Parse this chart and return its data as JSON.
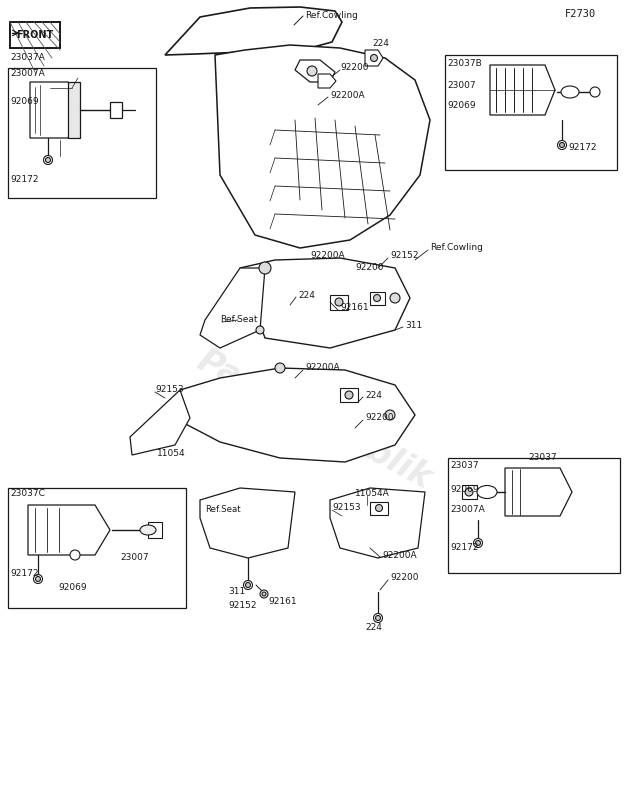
{
  "bg_color": "#ffffff",
  "line_color": "#1a1a1a",
  "text_color": "#1a1a1a",
  "gray_color": "#888888",
  "title": "F2730",
  "watermark": "PartsRepublik",
  "watermark_color": "#cccccc",
  "front_label": "FRONT",
  "labels": {
    "ref_cowling_top": "Ref.Cowling",
    "ref_cowling_right": "Ref.Cowling",
    "ref_seat_mid": "Ref.Seat",
    "ref_seat_bot": "Ref.Seat",
    "p23037a": "23037A",
    "p23007a_L": "23007A",
    "p92069_L": "92069",
    "p92172_L": "92172",
    "p23037b": "23037B",
    "p23007_R": "23007",
    "p92069_R": "92069",
    "p92172_R": "92172",
    "p224_top": "224",
    "p92200_top": "92200",
    "p92200a_top": "92200A",
    "p92200a_mid": "92200A",
    "p92200_mid": "92200",
    "p92152_mid": "92152",
    "p92161_mid": "92161",
    "p224_mid": "224",
    "p311_mid": "311",
    "p92153_L": "92153",
    "p92200a_low": "92200A",
    "p224_low": "224",
    "p92200_low": "92200",
    "p11054": "11054",
    "p23037c": "23037C",
    "p23007_BL": "23007",
    "p92172_BL": "92172",
    "p92069_BL": "92069",
    "p311_bot": "311",
    "p92152_bot": "92152",
    "p92161_bot": "92161",
    "p92153_bot": "92153",
    "p11054a": "11054A",
    "p92200a_bot": "92200A",
    "p92200_bot": "92200",
    "p224_bot": "224",
    "p23037_BR": "23037",
    "p92069_BR": "92069",
    "p23007a_BR": "23007A",
    "p92172_BR": "92172"
  }
}
